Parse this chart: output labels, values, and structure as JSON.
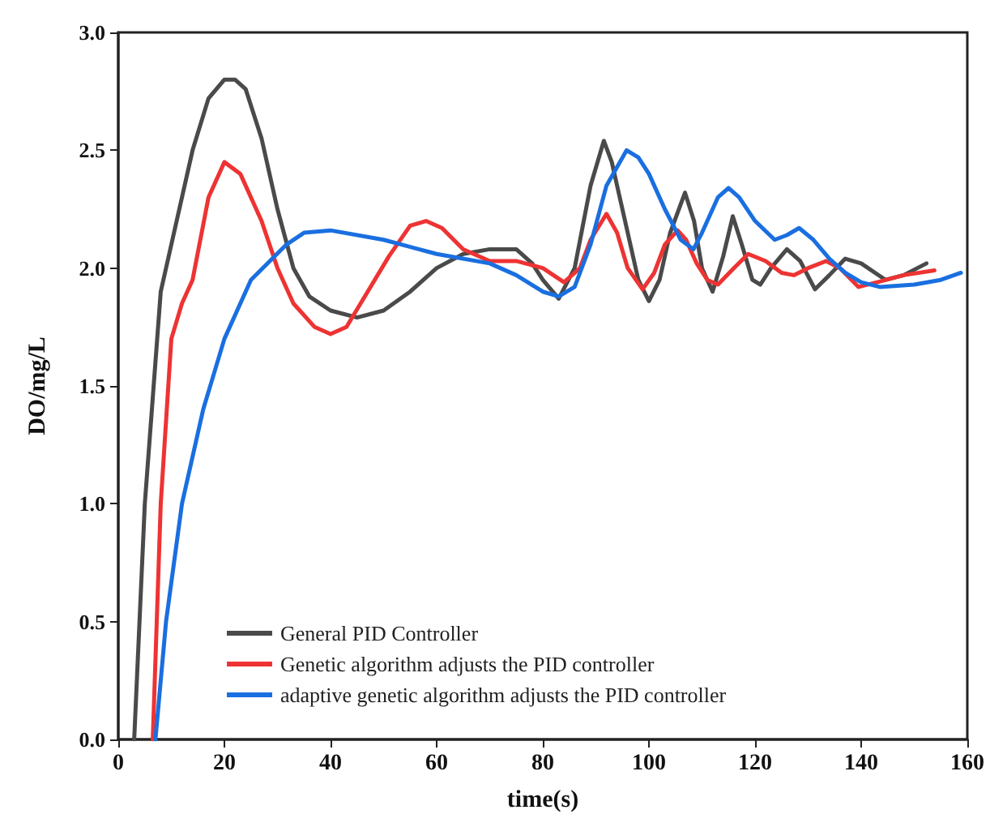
{
  "chart_data": {
    "type": "line",
    "xlabel": "time(s)",
    "ylabel": "DO/mg/L",
    "xlim": [
      0,
      160
    ],
    "xticks": [
      0,
      20,
      40,
      60,
      80,
      100,
      120,
      140,
      160
    ],
    "ylim": [
      0,
      3
    ],
    "yticks": [
      {
        "value": 0,
        "label": "0.0"
      },
      {
        "value": 0.5,
        "label": "0.5"
      },
      {
        "value": 1,
        "label": "1.0"
      },
      {
        "value": 1.5,
        "label": "1.5"
      },
      {
        "value": 2,
        "label": "2.0"
      },
      {
        "value": 2.5,
        "label": "2.5"
      },
      {
        "value": 3,
        "label": "3.0"
      }
    ],
    "grid": false,
    "legend": "bottom left",
    "marker": "none",
    "line_style": "solid",
    "series": [
      {
        "name": "General PID Controller",
        "color": "#4a4a4a",
        "x": [
          3,
          5,
          8,
          11,
          14,
          17,
          20,
          22,
          24,
          27,
          30,
          33,
          36,
          40,
          45,
          50,
          55,
          60,
          65,
          70,
          75,
          78,
          80,
          83,
          86,
          89,
          91.5,
          93,
          96,
          98,
          100,
          102,
          104,
          106.8,
          108.5,
          110,
          112,
          114,
          115.8,
          117.5,
          119.5,
          121,
          123,
          126,
          128.5,
          131.3,
          134,
          137,
          140,
          144.6,
          148,
          152.3
        ],
        "values": [
          0,
          1.0,
          1.9,
          2.2,
          2.5,
          2.72,
          2.8,
          2.8,
          2.76,
          2.55,
          2.25,
          2.0,
          1.88,
          1.82,
          1.79,
          1.82,
          1.9,
          2.0,
          2.06,
          2.08,
          2.08,
          2.02,
          1.95,
          1.87,
          2.0,
          2.35,
          2.54,
          2.45,
          2.15,
          1.95,
          1.86,
          1.95,
          2.15,
          2.32,
          2.2,
          2.0,
          1.9,
          2.05,
          2.22,
          2.1,
          1.95,
          1.93,
          2.0,
          2.08,
          2.03,
          1.91,
          1.97,
          2.04,
          2.02,
          1.95,
          1.97,
          2.02
        ]
      },
      {
        "name": "Genetic algorithm adjusts the PID controller",
        "color": "#ee3333",
        "x": [
          6.5,
          8,
          10,
          12,
          14,
          17,
          20,
          23,
          27,
          30,
          33,
          37,
          40,
          43,
          47,
          51,
          55,
          58,
          61,
          65,
          70,
          75,
          80,
          84,
          87,
          89,
          92,
          94,
          96,
          98.8,
          101,
          103,
          105.4,
          107,
          109,
          111,
          113,
          116,
          118.7,
          122,
          125,
          127.3,
          130,
          133.4,
          136,
          139.5,
          143,
          148,
          153.8
        ],
        "values": [
          0,
          1.0,
          1.7,
          1.85,
          1.95,
          2.3,
          2.45,
          2.4,
          2.2,
          2.0,
          1.85,
          1.75,
          1.72,
          1.75,
          1.9,
          2.05,
          2.18,
          2.2,
          2.17,
          2.08,
          2.03,
          2.03,
          2.0,
          1.94,
          2.0,
          2.12,
          2.23,
          2.15,
          2.0,
          1.91,
          1.98,
          2.1,
          2.16,
          2.12,
          2.02,
          1.95,
          1.93,
          2.0,
          2.06,
          2.03,
          1.98,
          1.97,
          2.0,
          2.03,
          2.0,
          1.92,
          1.94,
          1.97,
          1.99
        ]
      },
      {
        "name": "adaptive genetic algorithm adjusts the PID controller",
        "color": "#1a6fe0",
        "x": [
          7,
          9,
          12,
          16,
          20,
          25,
          31.7,
          35,
          40,
          50,
          60,
          70,
          75,
          80,
          83,
          86,
          89,
          92,
          95.8,
          98,
          100,
          103,
          106,
          108.4,
          110,
          113,
          115,
          117,
          120,
          123.7,
          126,
          128.3,
          131,
          134,
          137,
          140,
          143.5,
          150,
          155,
          158.8
        ],
        "values": [
          0,
          0.5,
          1.0,
          1.4,
          1.7,
          1.95,
          2.1,
          2.15,
          2.16,
          2.12,
          2.06,
          2.02,
          1.97,
          1.9,
          1.88,
          1.92,
          2.1,
          2.35,
          2.5,
          2.47,
          2.4,
          2.25,
          2.12,
          2.08,
          2.15,
          2.3,
          2.34,
          2.3,
          2.2,
          2.12,
          2.14,
          2.17,
          2.12,
          2.04,
          1.98,
          1.94,
          1.92,
          1.93,
          1.95,
          1.98
        ]
      }
    ]
  }
}
